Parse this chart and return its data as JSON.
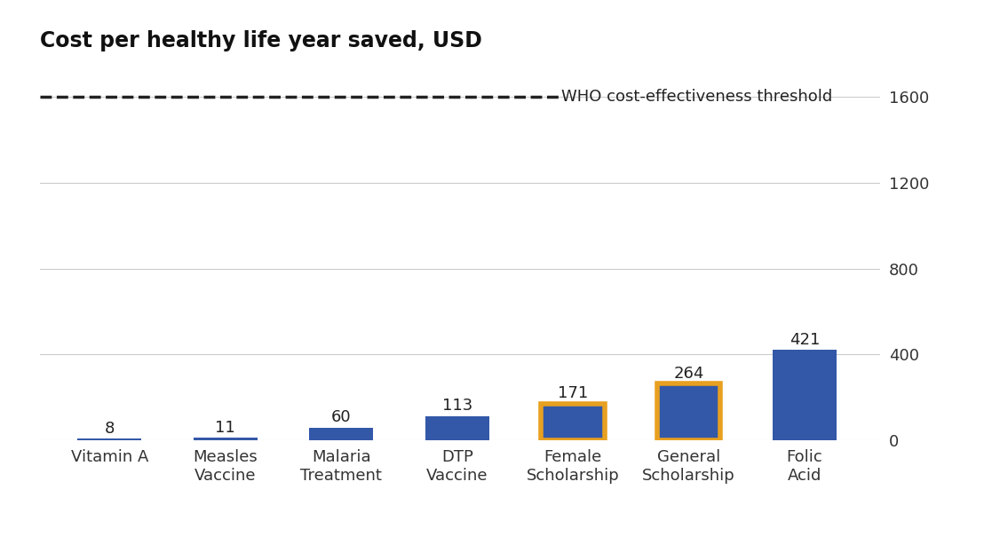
{
  "title": "Cost per healthy life year saved, USD",
  "categories": [
    "Vitamin A",
    "Measles\nVaccine",
    "Malaria\nTreatment",
    "DTP\nVaccine",
    "Female\nScholarship",
    "General\nScholarship",
    "Folic\nAcid"
  ],
  "values": [
    8,
    11,
    60,
    113,
    171,
    264,
    421
  ],
  "bar_color": "#3358a8",
  "highlighted": [
    4,
    5
  ],
  "highlight_edgecolor": "#e8a020",
  "highlight_linewidth": 4.0,
  "who_threshold": 1600,
  "who_label": "WHO cost-effectiveness threshold",
  "dashed_line_color": "#222222",
  "ylim": [
    0,
    1750
  ],
  "yticks": [
    0,
    400,
    800,
    1200,
    1600
  ],
  "background_color": "#ffffff",
  "grid_color": "#cccccc",
  "title_fontsize": 17,
  "label_fontsize": 13,
  "tick_fontsize": 13,
  "value_fontsize": 13
}
